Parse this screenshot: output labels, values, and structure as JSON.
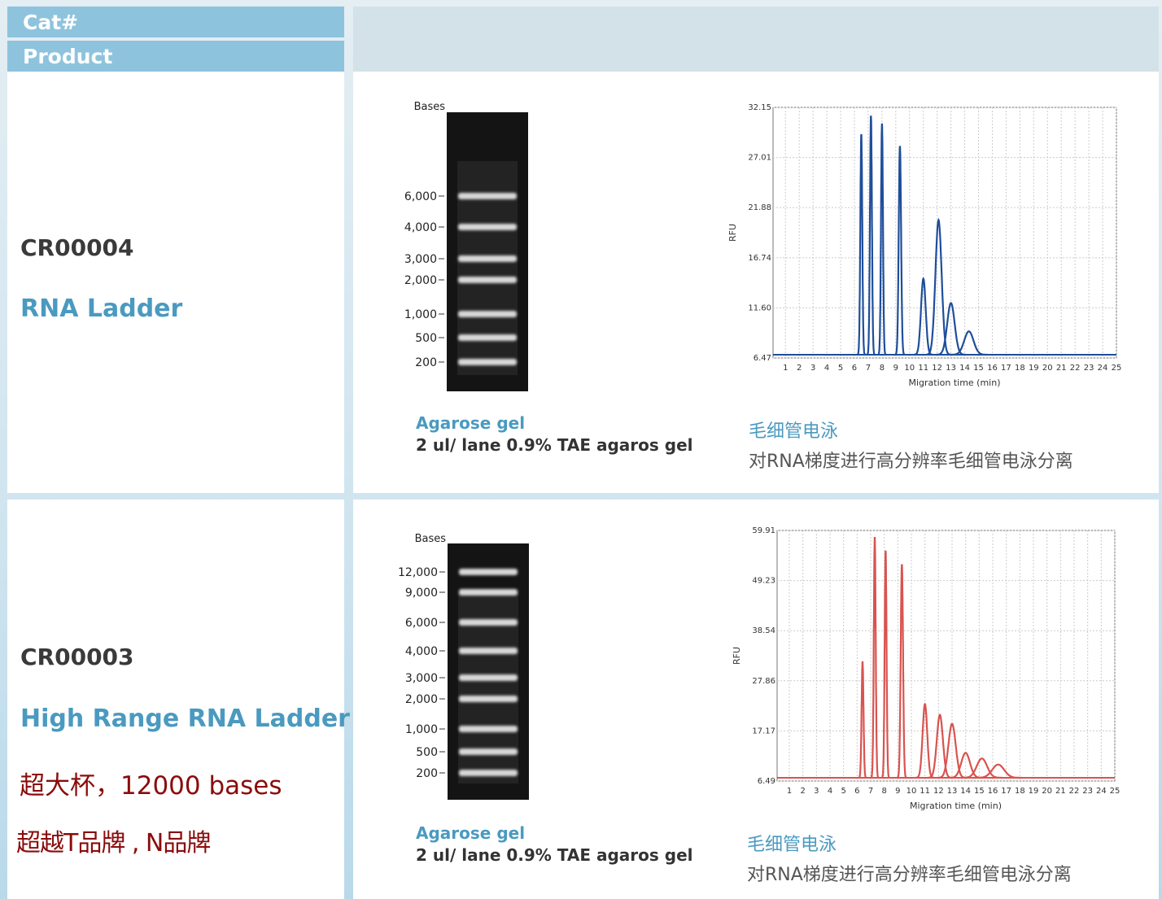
{
  "header": {
    "cat": "Cat#",
    "product": "Product"
  },
  "products": [
    {
      "cat": "CR00004",
      "name": "RNA Ladder",
      "gel": {
        "title": "Bases",
        "markers": [
          "6,000",
          "4,000",
          "3,000",
          "2,000",
          "1,000",
          "500",
          "200"
        ]
      },
      "gel_caption": {
        "title": "Agarose gel",
        "text": "2 ul/ lane 0.9% TAE agaros gel"
      },
      "chart_data": {
        "type": "line",
        "ylabel": "RFU",
        "xlabel": "Migration time (min)",
        "xlim": [
          0.1,
          25
        ],
        "xticks": [
          1,
          2,
          3,
          4,
          5,
          6,
          7,
          8,
          9,
          10,
          11,
          12,
          13,
          14,
          15,
          16,
          17,
          18,
          19,
          20,
          21,
          22,
          23,
          24,
          25
        ],
        "ylim": [
          6.47,
          32.15
        ],
        "yticks": [
          6.47,
          {
            "value": 11.6,
            "label": "11.60"
          },
          16.74,
          21.88,
          27.01,
          32.15
        ],
        "grid": true,
        "color": "#1f4e9b",
        "x": [
          6.5,
          7.2,
          8.0,
          9.3,
          11.0,
          12.1,
          13.0,
          14.3
        ],
        "values": [
          29.4,
          31.3,
          30.5,
          28.2,
          14.6,
          20.6,
          12.1,
          9.2
        ]
      },
      "ce_caption": {
        "title": "毛细管电泳",
        "text": "对RNA梯度进行高分辨率毛细管电泳分离"
      }
    },
    {
      "cat": "CR00003",
      "name": "High Range RNA Ladder",
      "notes": [
        "超大杯，12000 bases",
        "超越T品牌 , N品牌"
      ],
      "gel": {
        "title": "Bases",
        "markers": [
          "12,000",
          "9,000",
          "6,000",
          "4,000",
          "3,000",
          "2,000",
          "1,000",
          "500",
          "200"
        ]
      },
      "gel_caption": {
        "title": "Agarose gel",
        "text": "2 ul/ lane 0.9% TAE agaros gel"
      },
      "chart_data": {
        "type": "line",
        "ylabel": "RFU",
        "xlabel": "Migration time (min)",
        "xlim": [
          0.1,
          25
        ],
        "xticks": [
          1,
          2,
          3,
          4,
          5,
          6,
          7,
          8,
          9,
          10,
          11,
          12,
          13,
          14,
          15,
          16,
          17,
          18,
          19,
          20,
          21,
          22,
          23,
          24,
          25
        ],
        "ylim": [
          6.49,
          59.91
        ],
        "yticks": [
          6.49,
          17.17,
          27.86,
          38.54,
          49.23,
          59.91
        ],
        "grid": true,
        "color": "#d9534f",
        "x": [
          6.4,
          7.3,
          8.1,
          9.3,
          11.0,
          12.1,
          13.0,
          14.0,
          15.2,
          16.4
        ],
        "values": [
          32.0,
          58.5,
          55.6,
          52.7,
          22.9,
          20.6,
          18.7,
          12.5,
          11.3,
          10.0
        ]
      },
      "ce_caption": {
        "title": "毛细管电泳",
        "text": "对RNA梯度进行高分辨率毛细管电泳分离"
      }
    }
  ]
}
